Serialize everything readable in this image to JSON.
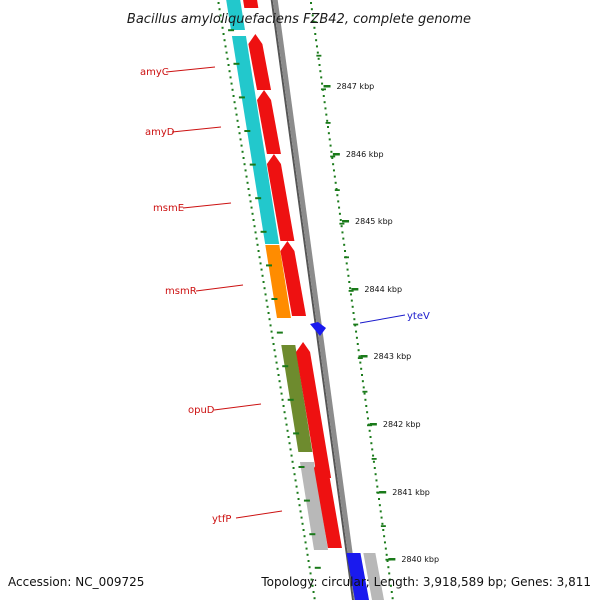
{
  "title": "Bacillus amyloliquefaciens FZB42, complete genome",
  "footer": {
    "accession": "Accession: NC_009725",
    "summary": "Topology: circular; Length: 3,918,589 bp; Genes: 3,811"
  },
  "colors": {
    "backbone": "#8c8c8c",
    "tick": "#1a7a1a",
    "gene_label": "#cc1111",
    "minus_label": "#1a1acc",
    "cds": "#ee1111",
    "amy_msm": "#22c8cc",
    "msmR": "#ff8c00",
    "opuD": "#6e8b2e",
    "ytfP": "#b8b8b8",
    "minus_gene": "#1a1aee"
  },
  "scale_ticks": [
    {
      "kbp": 2847,
      "label": "2847 kbp"
    },
    {
      "kbp": 2846,
      "label": "2846 kbp"
    },
    {
      "kbp": 2845,
      "label": "2845 kbp"
    },
    {
      "kbp": 2844,
      "label": "2844 kbp"
    },
    {
      "kbp": 2843,
      "label": "2843 kbp"
    },
    {
      "kbp": 2842,
      "label": "2842 kbp"
    },
    {
      "kbp": 2841,
      "label": "2841 kbp"
    },
    {
      "kbp": 2840,
      "label": "2840 kbp"
    }
  ],
  "gene_labels": [
    {
      "name": "amyC",
      "strand": "plus"
    },
    {
      "name": "amyD",
      "strand": "plus"
    },
    {
      "name": "msmE",
      "strand": "plus"
    },
    {
      "name": "msmR",
      "strand": "plus"
    },
    {
      "name": "opuD",
      "strand": "plus"
    },
    {
      "name": "ytfP",
      "strand": "plus"
    },
    {
      "name": "yteV",
      "strand": "minus"
    }
  ]
}
